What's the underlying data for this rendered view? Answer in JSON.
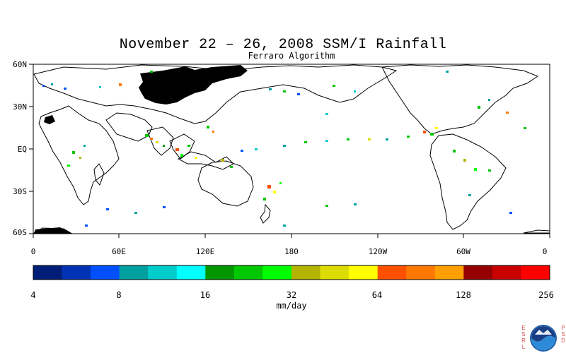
{
  "title": "November 22 – 26, 2008 SSM/I Rainfall",
  "subtitle": "Ferraro Algorithm",
  "map": {
    "lat_labels": [
      "60N",
      "30N",
      "EQ",
      "30S",
      "60S"
    ],
    "lon_labels": [
      "0",
      "60E",
      "120E",
      "180",
      "120W",
      "60W",
      "0"
    ]
  },
  "colorbar": {
    "units": "mm/day",
    "tick_labels": [
      "4",
      "8",
      "16",
      "32",
      "64",
      "128",
      "256"
    ],
    "colors": [
      "#001e78",
      "#0033b4",
      "#0050ff",
      "#00a0a0",
      "#00cccc",
      "#00ffff",
      "#009600",
      "#00c800",
      "#00ff00",
      "#b4b400",
      "#dcdc00",
      "#ffff00",
      "#ff5000",
      "#ff7800",
      "#ffa000",
      "#960000",
      "#c80000",
      "#ff0000"
    ]
  },
  "logo": {
    "left_letters": "ESRL",
    "right_letters": "PSD",
    "emblem": "NOAA"
  }
}
